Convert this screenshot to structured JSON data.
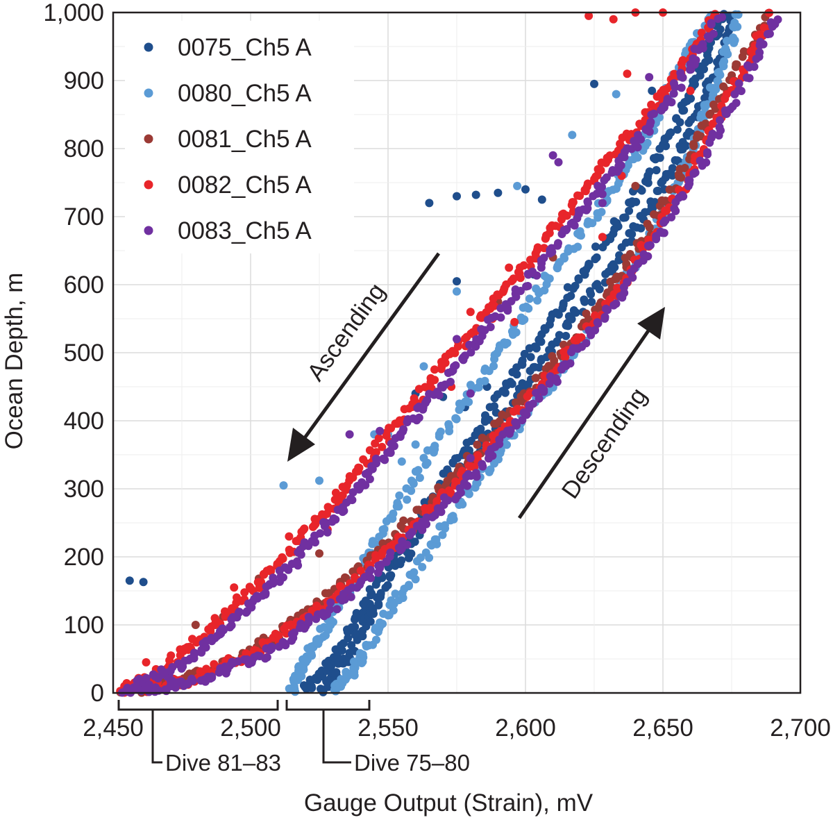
{
  "chart_data": {
    "type": "scatter",
    "xlabel": "Gauge Output (Strain), mV",
    "ylabel": "Ocean Depth, m",
    "xlim": [
      2450,
      2700
    ],
    "ylim": [
      0,
      1000
    ],
    "y_inverted": false,
    "grid": true,
    "legend_position": "top-left",
    "x_ticks": [
      2450,
      2500,
      2550,
      2600,
      2650,
      2700
    ],
    "x_tick_labels": [
      "2,450",
      "2,500",
      "2,550",
      "2,600",
      "2,650",
      "2,700"
    ],
    "y_ticks": [
      0,
      100,
      200,
      300,
      400,
      500,
      600,
      700,
      800,
      900,
      1000
    ],
    "y_tick_labels": [
      "0",
      "100",
      "200",
      "300",
      "400",
      "500",
      "600",
      "700",
      "800",
      "900",
      "1,000"
    ],
    "series": [
      {
        "name": "0075_Ch5 A",
        "color": "#1f4e8c",
        "curves": [
          {
            "x": [
              2519,
              2530,
              2545,
              2565,
              2585,
              2605,
              2625,
              2645,
              2660,
              2672
            ],
            "y": [
              0,
              50,
              150,
              280,
              400,
              520,
              640,
              760,
              880,
              1000
            ]
          },
          {
            "x": [
              2525,
              2535,
              2548,
              2568,
              2590,
              2612,
              2634,
              2652,
              2666,
              2676
            ],
            "y": [
              0,
              50,
              150,
              280,
              400,
              520,
              640,
              760,
              880,
              1000
            ]
          }
        ],
        "scatter": [
          [
            2456,
            165
          ],
          [
            2461,
            163
          ],
          [
            2565,
            720
          ],
          [
            2575,
            730
          ],
          [
            2582,
            732
          ],
          [
            2590,
            735
          ],
          [
            2600,
            740
          ],
          [
            2606,
            725
          ],
          [
            2575,
            605
          ],
          [
            2603,
            615
          ],
          [
            2560,
            440
          ],
          [
            2570,
            435
          ],
          [
            2578,
            420
          ],
          [
            2586,
            450
          ],
          [
            2625,
            895
          ],
          [
            2646,
            885
          ],
          [
            2667,
            990
          ]
        ]
      },
      {
        "name": "0080_Ch5 A",
        "color": "#5b9bd5",
        "curves": [
          {
            "x": [
              2515,
              2520,
              2530,
              2545,
              2565,
              2585,
              2605,
              2625,
              2643,
              2656,
              2668
            ],
            "y": [
              0,
              50,
              110,
              220,
              350,
              470,
              590,
              700,
              810,
              920,
              1000
            ]
          },
          {
            "x": [
              2530,
              2540,
              2555,
              2575,
              2597,
              2619,
              2640,
              2656,
              2668,
              2678
            ],
            "y": [
              0,
              50,
              150,
              270,
              390,
              510,
              630,
              750,
              880,
              1000
            ]
          }
        ],
        "scatter": [
          [
            2512,
            305
          ],
          [
            2525,
            312
          ],
          [
            2545,
            380
          ],
          [
            2550,
            380
          ],
          [
            2555,
            340
          ],
          [
            2560,
            365
          ],
          [
            2563,
            480
          ],
          [
            2575,
            590
          ],
          [
            2617,
            820
          ],
          [
            2633,
            880
          ],
          [
            2597,
            745
          ]
        ]
      },
      {
        "name": "0081_Ch5 A",
        "color": "#9b3a35",
        "curves": [
          {
            "x": [
              2452,
              2475,
              2500,
              2525,
              2550,
              2575,
              2600,
              2625,
              2648,
              2668,
              2688
            ],
            "y": [
              0,
              20,
              60,
              130,
              220,
              320,
              440,
              560,
              700,
              850,
              1000
            ]
          }
        ],
        "scatter": [
          [
            2480,
            100
          ],
          [
            2490,
            112
          ],
          [
            2503,
            168
          ],
          [
            2525,
            205
          ],
          [
            2590,
            575
          ],
          [
            2610,
            640
          ],
          [
            2640,
            745
          ],
          [
            2650,
            860
          ]
        ]
      },
      {
        "name": "0082_Ch5 A",
        "color": "#e8252a",
        "curves": [
          {
            "x": [
              2452,
              2470,
              2490,
              2510,
              2530,
              2550,
              2570,
              2590,
              2610,
              2630,
              2650,
              2670
            ],
            "y": [
              0,
              40,
              110,
              190,
              280,
              380,
              480,
              580,
              680,
              780,
              880,
              1000
            ]
          },
          {
            "x": [
              2455,
              2478,
              2502,
              2528,
              2553,
              2578,
              2603,
              2628,
              2651,
              2671,
              2690
            ],
            "y": [
              0,
              20,
              60,
              130,
              220,
              320,
              440,
              560,
              700,
              850,
              1000
            ]
          }
        ],
        "scatter": [
          [
            2462,
            45
          ],
          [
            2471,
            55
          ],
          [
            2476,
            65
          ],
          [
            2487,
            110
          ],
          [
            2494,
            155
          ],
          [
            2514,
            230
          ],
          [
            2528,
            240
          ],
          [
            2566,
            445
          ],
          [
            2573,
            450
          ],
          [
            2580,
            560
          ],
          [
            2588,
            550
          ],
          [
            2596,
            545
          ],
          [
            2594,
            625
          ],
          [
            2628,
            670
          ],
          [
            2635,
            760
          ],
          [
            2650,
            870
          ],
          [
            2660,
            885
          ],
          [
            2640,
            1000
          ],
          [
            2650,
            1000
          ],
          [
            2623,
            995
          ],
          [
            2632,
            990
          ],
          [
            2637,
            910
          ]
        ]
      },
      {
        "name": "0083_Ch5 A",
        "color": "#7030a0",
        "curves": [
          {
            "x": [
              2452,
              2472,
              2493,
              2513,
              2533,
              2553,
              2573,
              2593,
              2613,
              2633,
              2652,
              2671
            ],
            "y": [
              0,
              35,
              100,
              180,
              270,
              370,
              470,
              570,
              670,
              770,
              870,
              1000
            ]
          },
          {
            "x": [
              2458,
              2482,
              2506,
              2531,
              2556,
              2581,
              2606,
              2630,
              2653,
              2673,
              2692
            ],
            "y": [
              0,
              20,
              60,
              130,
              220,
              320,
              440,
              560,
              700,
              850,
              1000
            ]
          }
        ],
        "scatter": [
          [
            2536,
            380
          ],
          [
            2547,
            385
          ],
          [
            2575,
            520
          ],
          [
            2580,
            440
          ],
          [
            2610,
            790
          ],
          [
            2612,
            780
          ],
          [
            2628,
            720
          ],
          [
            2645,
            905
          ],
          [
            2662,
            930
          ],
          [
            2580,
            345
          ]
        ]
      }
    ],
    "annotations": {
      "ascending": "Ascending",
      "descending": "Descending",
      "dive_a": "Dive 81–83",
      "dive_b": "Dive 75–80"
    }
  }
}
